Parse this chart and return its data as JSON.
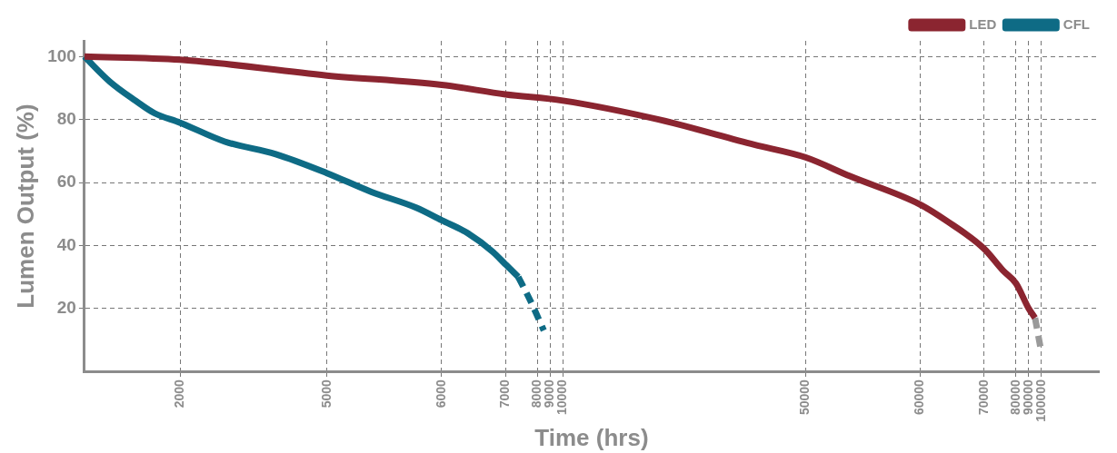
{
  "chart_data": {
    "type": "line",
    "xlabel": "Time (hrs)",
    "ylabel": "Lumen Output (%)",
    "categories": [
      null,
      null,
      null,
      null,
      null,
      null,
      null,
      null,
      null,
      null,
      null,
      null,
      null,
      null,
      null,
      "2000",
      null,
      null,
      null,
      null,
      null,
      null,
      null,
      null,
      null,
      null,
      null,
      null,
      null,
      null,
      null,
      null,
      null,
      null,
      null,
      null,
      null,
      null,
      "5000",
      null,
      null,
      null,
      null,
      null,
      null,
      null,
      null,
      null,
      null,
      null,
      null,
      null,
      null,
      null,
      null,
      null,
      "6000",
      null,
      null,
      null,
      null,
      null,
      null,
      null,
      null,
      null,
      "7000",
      null,
      null,
      null,
      null,
      "8000",
      null,
      "9000",
      null,
      "10000",
      null,
      null,
      null,
      null,
      null,
      null,
      null,
      null,
      null,
      null,
      null,
      null,
      null,
      null,
      null,
      null,
      null,
      null,
      null,
      null,
      null,
      null,
      null,
      null,
      null,
      null,
      null,
      null,
      null,
      null,
      null,
      null,
      null,
      null,
      null,
      null,
      null,
      "50000",
      null,
      null,
      null,
      null,
      null,
      null,
      null,
      null,
      null,
      null,
      null,
      null,
      null,
      null,
      null,
      null,
      null,
      "60000",
      null,
      null,
      null,
      null,
      null,
      null,
      null,
      null,
      null,
      "70000",
      null,
      null,
      null,
      null,
      "80000",
      null,
      "90000",
      null,
      "100000",
      null,
      null,
      null,
      null,
      null,
      null,
      null,
      null,
      null
    ],
    "series": [
      {
        "name": "LED",
        "color": "#8b2530",
        "values": [
          100,
          null,
          null,
          null,
          null,
          null,
          null,
          null,
          null,
          null,
          null,
          null,
          null,
          null,
          null,
          99,
          null,
          null,
          null,
          null,
          null,
          null,
          null,
          null,
          null,
          null,
          null,
          null,
          null,
          null,
          null,
          null,
          null,
          null,
          null,
          null,
          null,
          null,
          94,
          null,
          null,
          null,
          null,
          null,
          null,
          null,
          null,
          null,
          null,
          null,
          null,
          null,
          null,
          null,
          null,
          null,
          91,
          null,
          null,
          null,
          null,
          null,
          null,
          null,
          null,
          null,
          88,
          null,
          null,
          null,
          null,
          null,
          null,
          null,
          null,
          86,
          null,
          null,
          null,
          null,
          null,
          null,
          null,
          null,
          null,
          null,
          null,
          null,
          null,
          null,
          80,
          null,
          null,
          null,
          null,
          null,
          null,
          null,
          null,
          null,
          null,
          null,
          null,
          null,
          null,
          72,
          null,
          null,
          null,
          null,
          null,
          null,
          null,
          68,
          null,
          null,
          null,
          null,
          null,
          null,
          62,
          null,
          null,
          null,
          null,
          null,
          null,
          null,
          null,
          null,
          null,
          53,
          null,
          null,
          null,
          48,
          null,
          null,
          null,
          null,
          null,
          39,
          null,
          null,
          32,
          null,
          28,
          null,
          20,
          17,
          null,
          null,
          null,
          null,
          null,
          null,
          null,
          null,
          null,
          null
        ]
      },
      {
        "name": "CFL",
        "color": "#0e6b85",
        "values": [
          100,
          null,
          null,
          null,
          92,
          null,
          null,
          null,
          86,
          null,
          null,
          82,
          null,
          null,
          null,
          79,
          null,
          null,
          null,
          null,
          null,
          null,
          73,
          null,
          null,
          null,
          null,
          null,
          null,
          null,
          69,
          null,
          null,
          null,
          null,
          null,
          null,
          null,
          63,
          null,
          null,
          null,
          null,
          null,
          null,
          57,
          null,
          null,
          null,
          null,
          null,
          null,
          52,
          null,
          null,
          null,
          48,
          null,
          null,
          null,
          44,
          null,
          null,
          null,
          38,
          null,
          34,
          null,
          30,
          null,
          null,
          null,
          null,
          null,
          null,
          null,
          null,
          null,
          null,
          null,
          null,
          null,
          null,
          null,
          null,
          null,
          null,
          null,
          null,
          null,
          null,
          null,
          null,
          null,
          null,
          null,
          null,
          null,
          null,
          null,
          null,
          null,
          null,
          null,
          null,
          null,
          null,
          null,
          null,
          null,
          null,
          null,
          null,
          null,
          null,
          null,
          null,
          null,
          null,
          null,
          null,
          null,
          null,
          null,
          null,
          null,
          null,
          null,
          null,
          null,
          null,
          null,
          null,
          null,
          null,
          null,
          null,
          null,
          null,
          null,
          null,
          null,
          null,
          null,
          null,
          null,
          null,
          null,
          null,
          null,
          null,
          null,
          null,
          null,
          null,
          null,
          null,
          null,
          null,
          null
        ]
      },
      {
        "color": "#0e6b85",
        "line_style": "dashed",
        "values": [
          null,
          null,
          null,
          null,
          null,
          null,
          null,
          null,
          null,
          null,
          null,
          null,
          null,
          null,
          null,
          null,
          null,
          null,
          null,
          null,
          null,
          null,
          null,
          null,
          null,
          null,
          null,
          null,
          null,
          null,
          null,
          null,
          null,
          null,
          null,
          null,
          null,
          null,
          null,
          null,
          null,
          null,
          null,
          null,
          null,
          null,
          null,
          null,
          null,
          null,
          null,
          null,
          null,
          null,
          null,
          null,
          null,
          null,
          null,
          null,
          null,
          null,
          null,
          null,
          null,
          null,
          null,
          null,
          30,
          null,
          22,
          null,
          13,
          null,
          null,
          null,
          null,
          null,
          null,
          null,
          null,
          null,
          null,
          null,
          null,
          null,
          null,
          null,
          null,
          null,
          null,
          null,
          null,
          null,
          null,
          null,
          null,
          null,
          null,
          null,
          null,
          null,
          null,
          null,
          null,
          null,
          null,
          null,
          null,
          null,
          null,
          null,
          null,
          null,
          null,
          null,
          null,
          null,
          null,
          null,
          null,
          null,
          null,
          null,
          null,
          null,
          null,
          null,
          null,
          null,
          null,
          null,
          null,
          null,
          null,
          null,
          null,
          null,
          null,
          null,
          null,
          null,
          null,
          null,
          null,
          null,
          null,
          null,
          null,
          null,
          null,
          null,
          null,
          null,
          null,
          null,
          null,
          null,
          null,
          null
        ]
      },
      {
        "color": "#9a9a9a",
        "line_style": "dashed",
        "values": [
          null,
          null,
          null,
          null,
          null,
          null,
          null,
          null,
          null,
          null,
          null,
          null,
          null,
          null,
          null,
          null,
          null,
          null,
          null,
          null,
          null,
          null,
          null,
          null,
          null,
          null,
          null,
          null,
          null,
          null,
          null,
          null,
          null,
          null,
          null,
          null,
          null,
          null,
          null,
          null,
          null,
          null,
          null,
          null,
          null,
          null,
          null,
          null,
          null,
          null,
          null,
          null,
          null,
          null,
          null,
          null,
          null,
          null,
          null,
          null,
          null,
          null,
          null,
          null,
          null,
          null,
          null,
          null,
          null,
          null,
          null,
          null,
          null,
          null,
          null,
          null,
          null,
          null,
          null,
          null,
          null,
          null,
          null,
          null,
          null,
          null,
          null,
          null,
          null,
          null,
          null,
          null,
          null,
          null,
          null,
          null,
          null,
          null,
          null,
          null,
          null,
          null,
          null,
          null,
          null,
          null,
          null,
          null,
          null,
          null,
          null,
          null,
          null,
          null,
          null,
          null,
          null,
          null,
          null,
          null,
          null,
          null,
          null,
          null,
          null,
          null,
          null,
          null,
          null,
          null,
          null,
          null,
          null,
          null,
          null,
          null,
          null,
          null,
          null,
          null,
          null,
          null,
          null,
          null,
          null,
          null,
          null,
          null,
          null,
          17,
          6,
          null,
          null,
          null,
          null,
          null,
          null,
          null,
          null,
          null
        ]
      }
    ],
    "ylim": [
      0,
      105
    ],
    "yticks": [
      20,
      40,
      60,
      80,
      100
    ],
    "grid": true,
    "legend": "top right",
    "marker": "none",
    "line_style": "solid"
  }
}
